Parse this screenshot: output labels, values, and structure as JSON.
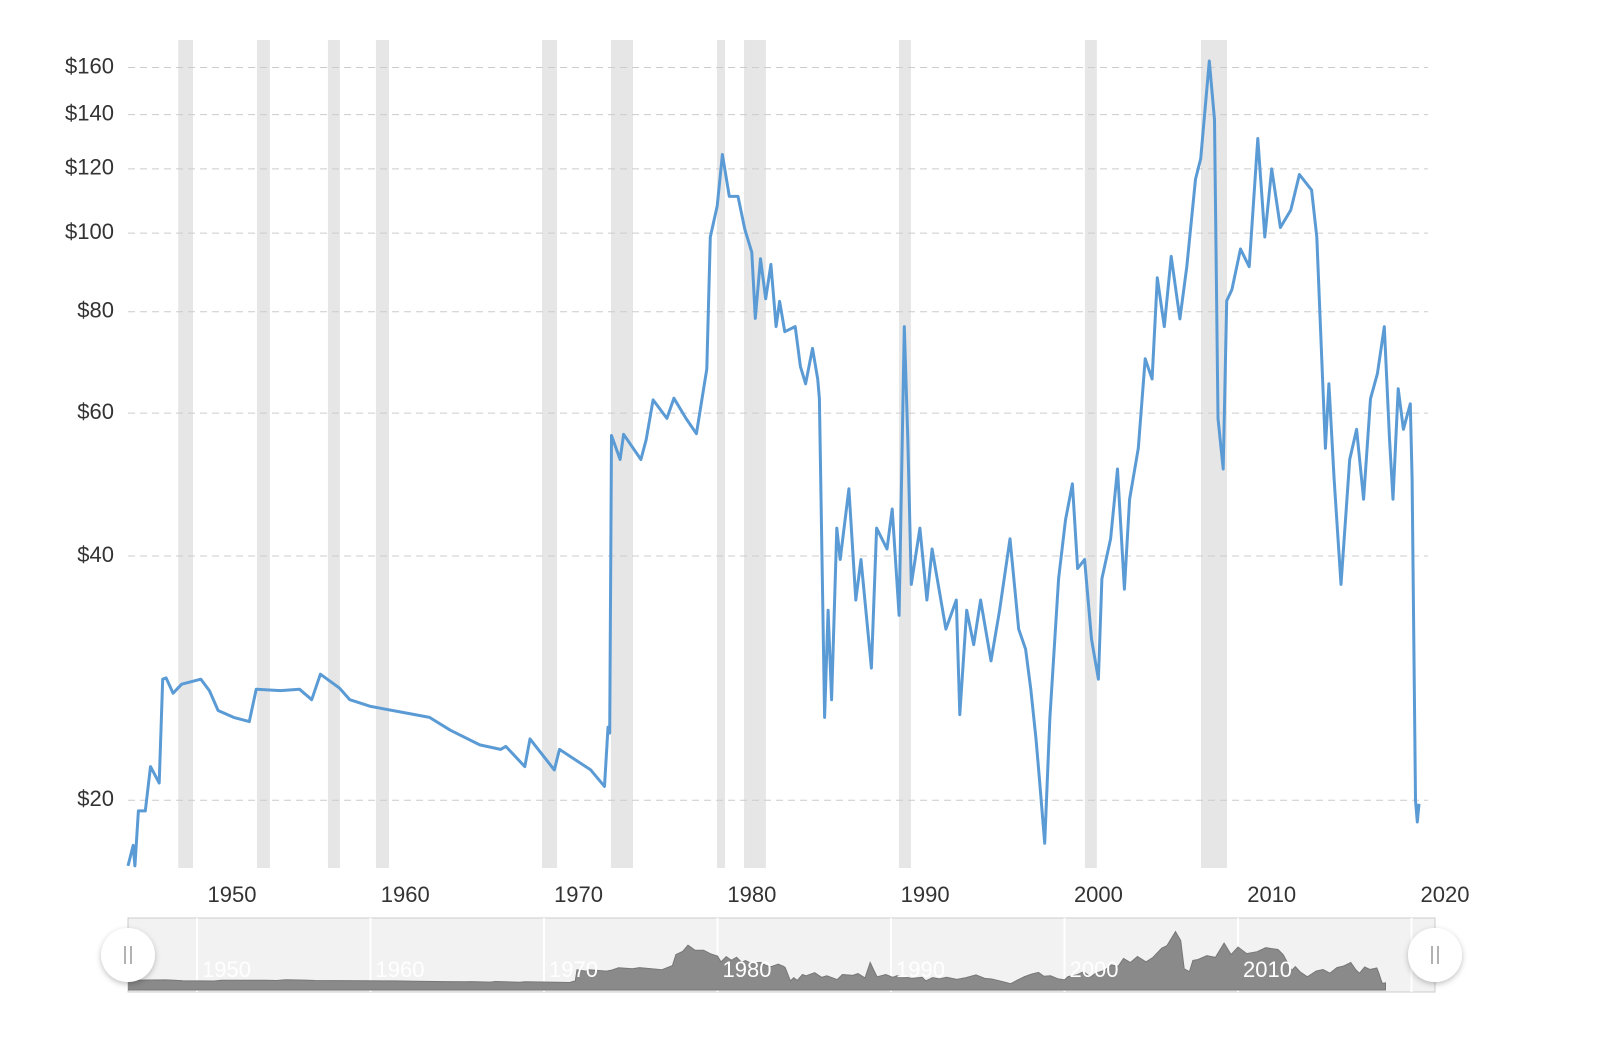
{
  "chart_data": {
    "type": "line",
    "x": [
      1944.0,
      1944.3,
      1944.4,
      1944.6,
      1945.0,
      1945.3,
      1945.8,
      1946.0,
      1946.2,
      1946.6,
      1947.1,
      1948.2,
      1948.7,
      1949.2,
      1950.1,
      1951.0,
      1951.4,
      1952.8,
      1953.9,
      1954.6,
      1955.1,
      1956.2,
      1956.8,
      1958.0,
      1959.7,
      1961.4,
      1962.6,
      1964.3,
      1965.5,
      1965.8,
      1966.9,
      1967.2,
      1968.6,
      1968.9,
      1970.7,
      1971.5,
      1971.7,
      1971.8,
      1971.9,
      1972.4,
      1972.6,
      1973.6,
      1973.9,
      1974.3,
      1975.1,
      1975.5,
      1976.2,
      1976.8,
      1977.4,
      1977.6,
      1978.0,
      1978.3,
      1978.7,
      1979.2,
      1979.6,
      1980.0,
      1980.2,
      1980.5,
      1980.8,
      1981.1,
      1981.4,
      1981.6,
      1981.9,
      1982.5,
      1982.8,
      1983.1,
      1983.5,
      1983.8,
      1983.9,
      1984.2,
      1984.4,
      1984.6,
      1984.9,
      1985.1,
      1985.6,
      1986.0,
      1986.3,
      1986.9,
      1987.2,
      1987.8,
      1988.1,
      1988.5,
      1988.8,
      1989.0,
      1989.2,
      1989.7,
      1990.1,
      1990.4,
      1991.2,
      1991.8,
      1992.0,
      1992.4,
      1992.8,
      1993.2,
      1993.8,
      1994.3,
      1994.9,
      1995.4,
      1995.8,
      1996.1,
      1996.4,
      1996.6,
      1996.9,
      1997.2,
      1997.7,
      1998.1,
      1998.5,
      1998.8,
      1999.2,
      1999.6,
      2000.0,
      2000.2,
      2000.7,
      2001.1,
      2001.5,
      2001.8,
      2002.3,
      2002.7,
      2003.1,
      2003.4,
      2003.8,
      2004.2,
      2004.7,
      2005.1,
      2005.6,
      2005.9,
      2006.4,
      2006.7,
      2006.9,
      2007.2,
      2007.4,
      2007.7,
      2008.2,
      2008.7,
      2009.2,
      2009.6,
      2010.0,
      2010.5,
      2011.1,
      2011.6,
      2012.3,
      2012.6,
      2013.1,
      2013.3,
      2013.6,
      2014.0,
      2014.5,
      2014.9,
      2015.3,
      2015.7,
      2016.1,
      2016.5,
      2016.8,
      2017.0,
      2017.3,
      2017.6,
      2018.0,
      2018.1,
      2018.3,
      2018.4,
      2018.5
    ],
    "values": [
      16.6,
      17.6,
      16.6,
      19.4,
      19.4,
      22,
      21,
      28.2,
      28.3,
      27.1,
      27.8,
      28.2,
      27.3,
      25.8,
      25.3,
      25,
      27.4,
      27.3,
      27.4,
      26.6,
      28.6,
      27.5,
      26.6,
      26.1,
      25.7,
      25.3,
      24.4,
      23.4,
      23.1,
      23.3,
      22,
      23.8,
      21.8,
      23.1,
      21.8,
      20.8,
      24.6,
      24.2,
      56.3,
      52.6,
      56.5,
      52.6,
      55.6,
      62.3,
      59.1,
      62.6,
      59.1,
      56.6,
      68,
      98.9,
      108,
      125,
      111,
      111,
      101,
      94.7,
      78.5,
      93,
      83,
      91.5,
      76.7,
      82.4,
      75.6,
      76.7,
      68.5,
      65.2,
      72.1,
      66.1,
      62.5,
      25.3,
      34.3,
      26.6,
      43.3,
      39.6,
      48.4,
      35.3,
      39.6,
      29.1,
      43.3,
      40.8,
      45.7,
      33.8,
      76.7,
      55.8,
      36.9,
      43.3,
      35.3,
      40.8,
      32.5,
      35.3,
      25.5,
      34.3,
      31.1,
      35.3,
      29.7,
      34.3,
      42,
      32.5,
      30.7,
      27.4,
      23.8,
      21.2,
      17.7,
      25.3,
      37.5,
      44.3,
      49.1,
      38.6,
      39.6,
      31.6,
      28.2,
      37.5,
      42,
      51.2,
      36.4,
      47,
      54.3,
      70,
      66.1,
      88.1,
      76.7,
      93.6,
      78.4,
      90.9,
      116.5,
      123.5,
      163,
      138,
      59.1,
      51.2,
      82.5,
      85.2,
      95.6,
      90.9,
      130.8,
      98.9,
      120,
      101.6,
      106.8,
      118.1,
      113,
      98.9,
      54.3,
      65.2,
      49.8,
      36.9,
      52.6,
      57.3,
      47,
      62.5,
      67.1,
      76.7,
      55.8,
      47,
      64.3,
      57.3,
      61.6,
      49.8,
      20,
      18.8,
      19.8
    ],
    "color": "#5b9bd5",
    "xlim": [
      1944,
      2020
    ],
    "ylim": [
      16.5,
      173
    ],
    "log_y": true,
    "grid": true,
    "xticks": [
      1950,
      1960,
      1970,
      1980,
      1990,
      2000,
      2010,
      2020
    ],
    "yticks": [
      {
        "value": 20,
        "label": "$20"
      },
      {
        "value": 40,
        "label": "$40"
      },
      {
        "value": 60,
        "label": "$60"
      },
      {
        "value": 80,
        "label": "$80"
      },
      {
        "value": 100,
        "label": "$100"
      },
      {
        "value": 120,
        "label": "$120"
      },
      {
        "value": 140,
        "label": "$140"
      },
      {
        "value": 160,
        "label": "$160"
      }
    ],
    "recessions": [
      [
        1946.9,
        1947.75
      ],
      [
        1951.44,
        1952.19
      ],
      [
        1955.54,
        1956.23
      ],
      [
        1958.31,
        1959.06
      ],
      [
        1967.89,
        1968.76
      ],
      [
        1971.87,
        1973.14
      ],
      [
        1977.99,
        1978.45
      ],
      [
        1979.55,
        1980.81
      ],
      [
        1988.49,
        1989.18
      ],
      [
        1999.22,
        1999.91
      ],
      [
        2005.92,
        2007.42
      ]
    ]
  }
}
